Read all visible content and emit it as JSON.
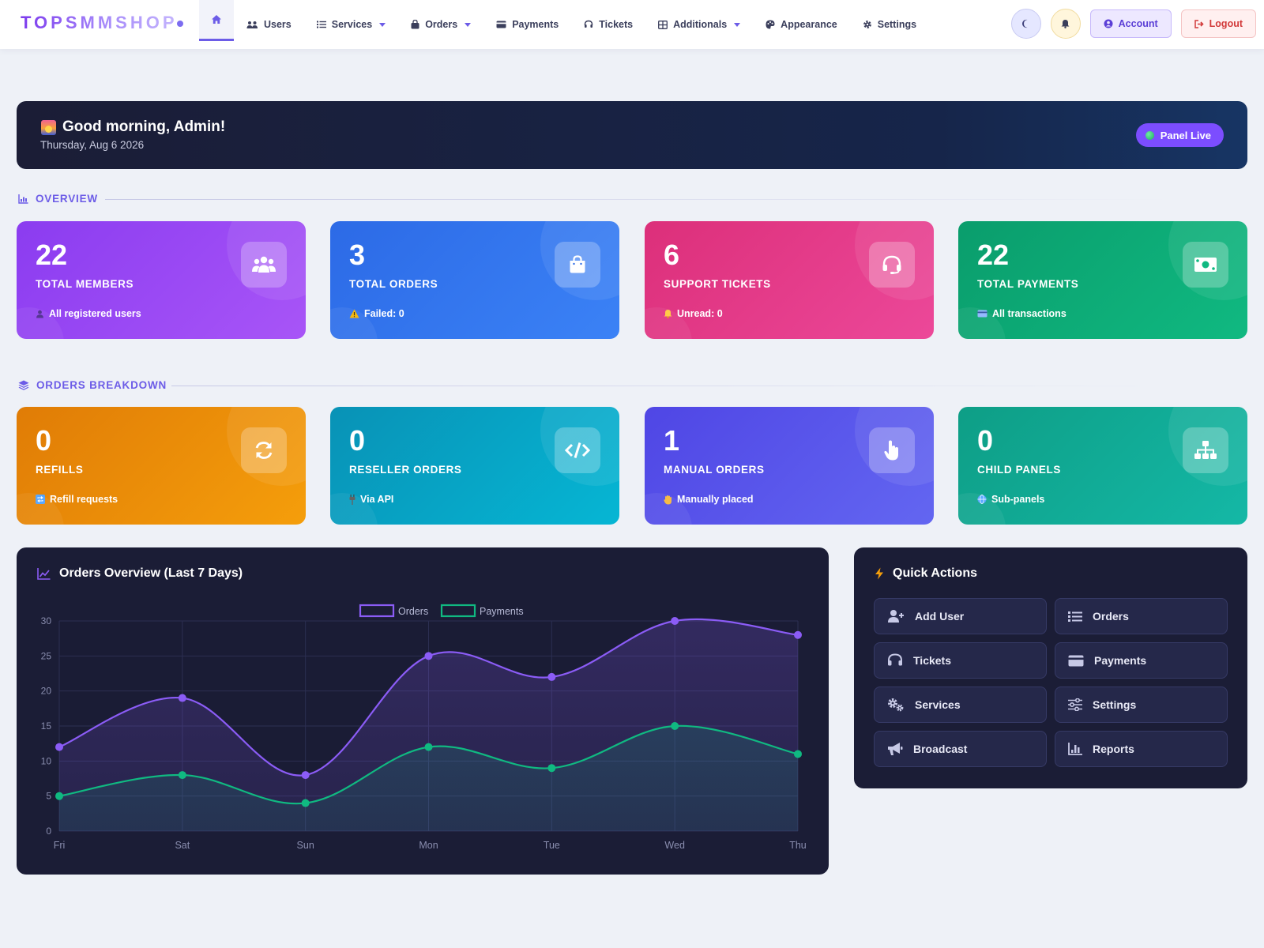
{
  "brand": {
    "name": "TOPSMMSHOP"
  },
  "nav": {
    "items": [
      {
        "label": "Users",
        "icon": "users-icon"
      },
      {
        "label": "Services",
        "icon": "list-icon",
        "dropdown": true
      },
      {
        "label": "Orders",
        "icon": "bag-icon",
        "dropdown": true
      },
      {
        "label": "Payments",
        "icon": "credit-card-icon"
      },
      {
        "label": "Tickets",
        "icon": "headset-icon"
      },
      {
        "label": "Additionals",
        "icon": "grid-icon",
        "dropdown": true
      },
      {
        "label": "Appearance",
        "icon": "palette-icon"
      },
      {
        "label": "Settings",
        "icon": "gear-icon"
      }
    ],
    "account_label": "Account",
    "logout_label": "Logout"
  },
  "greeting": {
    "title": "Good morning, Admin!",
    "date": "Thursday, Aug 6 2026",
    "status": "Panel Live"
  },
  "overview": {
    "heading": "OVERVIEW",
    "cards": [
      {
        "value": "22",
        "label": "Total Members",
        "sub": "All registered users",
        "color": "#8b3cf0",
        "icon": "users-icon"
      },
      {
        "value": "3",
        "label": "Total Orders",
        "sub": "Failed: 0",
        "color": "#2c6ae6",
        "icon": "shopping-bag-icon"
      },
      {
        "value": "6",
        "label": "Support Tickets",
        "sub": "Unread: 0",
        "color": "#dc2f7a",
        "icon": "headset-icon"
      },
      {
        "value": "22",
        "label": "Total Payments",
        "sub": "All transactions",
        "color": "#0a9d6c",
        "icon": "money-bill-icon"
      }
    ]
  },
  "breakdown": {
    "heading": "ORDERS BREAKDOWN",
    "cards": [
      {
        "value": "0",
        "label": "Refills",
        "sub": "Refill requests",
        "color": "#e07c06",
        "icon": "sync-icon"
      },
      {
        "value": "0",
        "label": "Reseller Orders",
        "sub": "Via API",
        "color": "#0892b6",
        "icon": "code-icon"
      },
      {
        "value": "1",
        "label": "Manual Orders",
        "sub": "Manually placed",
        "color": "#4f46e5",
        "icon": "hand-pointer-icon"
      },
      {
        "value": "0",
        "label": "Child Panels",
        "sub": "Sub-panels",
        "color": "#0e9e86",
        "icon": "sitemap-icon"
      }
    ]
  },
  "chart_panel": {
    "title": "Orders Overview (Last 7 Days)"
  },
  "chart_data": {
    "type": "line",
    "title": "Orders Overview (Last 7 Days)",
    "categories": [
      "Fri",
      "Sat",
      "Sun",
      "Mon",
      "Tue",
      "Wed",
      "Thu"
    ],
    "series": [
      {
        "name": "Orders",
        "values": [
          12,
          19,
          8,
          25,
          22,
          30,
          28
        ],
        "color": "#8b5cf6"
      },
      {
        "name": "Payments",
        "values": [
          5,
          8,
          4,
          12,
          9,
          15,
          11
        ],
        "color": "#10b981"
      }
    ],
    "ylim": [
      0,
      30
    ],
    "yticks": [
      "0",
      "5",
      "10",
      "15",
      "20",
      "25",
      "30"
    ],
    "grid": true,
    "legend": "top-center",
    "area_fill": true
  },
  "quick_actions": {
    "title": "Quick Actions",
    "items": [
      {
        "label": "Add User",
        "icon": "user-plus-icon"
      },
      {
        "label": "Orders",
        "icon": "list-icon"
      },
      {
        "label": "Tickets",
        "icon": "headset-icon"
      },
      {
        "label": "Payments",
        "icon": "credit-card-icon"
      },
      {
        "label": "Services",
        "icon": "gears-icon"
      },
      {
        "label": "Settings",
        "icon": "sliders-icon"
      },
      {
        "label": "Broadcast",
        "icon": "bullhorn-icon"
      },
      {
        "label": "Reports",
        "icon": "chart-bar-icon"
      }
    ]
  }
}
